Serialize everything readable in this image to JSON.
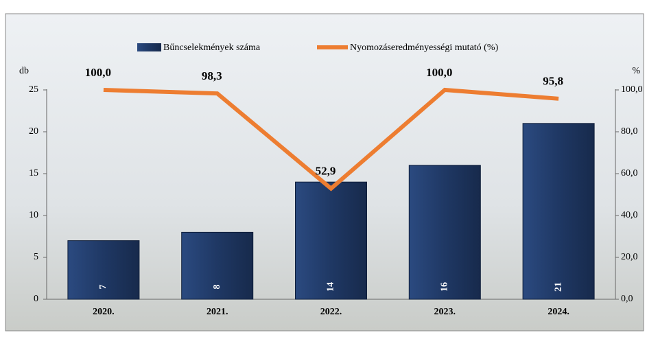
{
  "chart_data": {
    "type": "combo",
    "categories": [
      "2020.",
      "2021.",
      "2022.",
      "2023.",
      "2024."
    ],
    "ylabel": "db",
    "y2label": "%",
    "ylim": [
      0,
      25
    ],
    "yticks": [
      0,
      5,
      10,
      15,
      20,
      25
    ],
    "y2lim": [
      0,
      100
    ],
    "y2ticks": [
      {
        "value": 0,
        "label": "0,0"
      },
      {
        "value": 20,
        "label": "20,0"
      },
      {
        "value": 40,
        "label": "40,0"
      },
      {
        "value": 60,
        "label": "60,0"
      },
      {
        "value": 80,
        "label": "80,0"
      },
      {
        "value": 100,
        "label": "100,0"
      }
    ],
    "series": [
      {
        "name": "Bűncselekmények száma",
        "type": "bar",
        "color": "#1f3864",
        "values": [
          7,
          8,
          14,
          16,
          21
        ]
      },
      {
        "name": "Nyomozáseredményességi mutató (%)",
        "type": "line",
        "axis": "y2",
        "color": "#ed7d31",
        "values": [
          100,
          98.3,
          52.9,
          100,
          95.8
        ],
        "value_labels": [
          "100,0",
          "98,3",
          "52,9",
          "100,0",
          "95,8"
        ]
      }
    ]
  }
}
